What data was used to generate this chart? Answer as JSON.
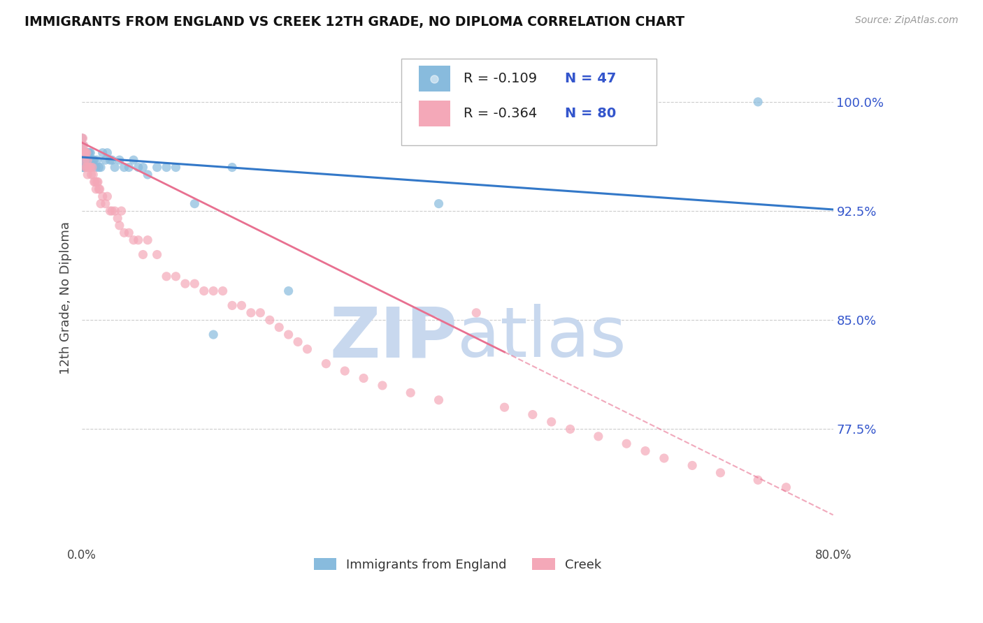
{
  "title": "IMMIGRANTS FROM ENGLAND VS CREEK 12TH GRADE, NO DIPLOMA CORRELATION CHART",
  "source": "Source: ZipAtlas.com",
  "ylabel": "12th Grade, No Diploma",
  "y_ticks": [
    0.775,
    0.85,
    0.925,
    1.0
  ],
  "y_tick_labels": [
    "77.5%",
    "85.0%",
    "92.5%",
    "100.0%"
  ],
  "xlim": [
    0.0,
    0.8
  ],
  "ylim": [
    0.695,
    1.035
  ],
  "legend_r1": "-0.109",
  "legend_n1": "47",
  "legend_r2": "-0.364",
  "legend_n2": "80",
  "blue_color": "#88bbdd",
  "pink_color": "#f4a8b8",
  "blue_line_color": "#3378c8",
  "pink_line_color": "#e87090",
  "r_value_color": "#3355cc",
  "n_value_color": "#3355cc",
  "watermark_color": "#c8d8ee",
  "legend_label1": "Immigrants from England",
  "legend_label2": "Creek",
  "blue_scatter_x": [
    0.0,
    0.0,
    0.0,
    0.0,
    0.001,
    0.001,
    0.001,
    0.002,
    0.002,
    0.003,
    0.003,
    0.004,
    0.005,
    0.006,
    0.007,
    0.008,
    0.009,
    0.01,
    0.011,
    0.012,
    0.013,
    0.015,
    0.016,
    0.018,
    0.02,
    0.022,
    0.025,
    0.027,
    0.03,
    0.032,
    0.035,
    0.04,
    0.045,
    0.05,
    0.055,
    0.06,
    0.065,
    0.07,
    0.08,
    0.09,
    0.1,
    0.12,
    0.14,
    0.16,
    0.22,
    0.38,
    0.72
  ],
  "blue_scatter_y": [
    0.975,
    0.965,
    0.96,
    0.955,
    0.97,
    0.96,
    0.955,
    0.965,
    0.955,
    0.96,
    0.955,
    0.965,
    0.965,
    0.965,
    0.965,
    0.965,
    0.965,
    0.96,
    0.96,
    0.96,
    0.96,
    0.955,
    0.96,
    0.955,
    0.955,
    0.965,
    0.96,
    0.965,
    0.96,
    0.96,
    0.955,
    0.96,
    0.955,
    0.955,
    0.96,
    0.955,
    0.955,
    0.95,
    0.955,
    0.955,
    0.955,
    0.93,
    0.84,
    0.955,
    0.87,
    0.93,
    1.0
  ],
  "pink_scatter_x": [
    0.0,
    0.0,
    0.0,
    0.001,
    0.001,
    0.002,
    0.002,
    0.003,
    0.003,
    0.004,
    0.004,
    0.005,
    0.005,
    0.006,
    0.006,
    0.007,
    0.008,
    0.009,
    0.01,
    0.011,
    0.012,
    0.013,
    0.014,
    0.015,
    0.016,
    0.017,
    0.018,
    0.019,
    0.02,
    0.022,
    0.025,
    0.027,
    0.03,
    0.032,
    0.035,
    0.038,
    0.04,
    0.042,
    0.045,
    0.05,
    0.055,
    0.06,
    0.065,
    0.07,
    0.08,
    0.09,
    0.1,
    0.11,
    0.12,
    0.13,
    0.14,
    0.15,
    0.16,
    0.17,
    0.18,
    0.19,
    0.2,
    0.21,
    0.22,
    0.23,
    0.24,
    0.26,
    0.28,
    0.3,
    0.32,
    0.35,
    0.38,
    0.42,
    0.45,
    0.48,
    0.5,
    0.52,
    0.55,
    0.58,
    0.6,
    0.62,
    0.65,
    0.68,
    0.72,
    0.75
  ],
  "pink_scatter_y": [
    0.975,
    0.97,
    0.965,
    0.975,
    0.965,
    0.97,
    0.965,
    0.965,
    0.96,
    0.965,
    0.955,
    0.965,
    0.955,
    0.96,
    0.95,
    0.955,
    0.955,
    0.955,
    0.95,
    0.955,
    0.95,
    0.945,
    0.945,
    0.94,
    0.945,
    0.945,
    0.94,
    0.94,
    0.93,
    0.935,
    0.93,
    0.935,
    0.925,
    0.925,
    0.925,
    0.92,
    0.915,
    0.925,
    0.91,
    0.91,
    0.905,
    0.905,
    0.895,
    0.905,
    0.895,
    0.88,
    0.88,
    0.875,
    0.875,
    0.87,
    0.87,
    0.87,
    0.86,
    0.86,
    0.855,
    0.855,
    0.85,
    0.845,
    0.84,
    0.835,
    0.83,
    0.82,
    0.815,
    0.81,
    0.805,
    0.8,
    0.795,
    0.855,
    0.79,
    0.785,
    0.78,
    0.775,
    0.77,
    0.765,
    0.76,
    0.755,
    0.75,
    0.745,
    0.74,
    0.735
  ],
  "blue_trend_x0": 0.0,
  "blue_trend_y0": 0.962,
  "blue_trend_x1": 0.8,
  "blue_trend_y1": 0.926,
  "pink_trend_solid_x0": 0.0,
  "pink_trend_solid_y0": 0.972,
  "pink_trend_solid_x1": 0.45,
  "pink_trend_solid_y1": 0.828,
  "pink_trend_dash_x0": 0.45,
  "pink_trend_dash_y0": 0.828,
  "pink_trend_dash_x1": 0.8,
  "pink_trend_dash_y1": 0.716
}
